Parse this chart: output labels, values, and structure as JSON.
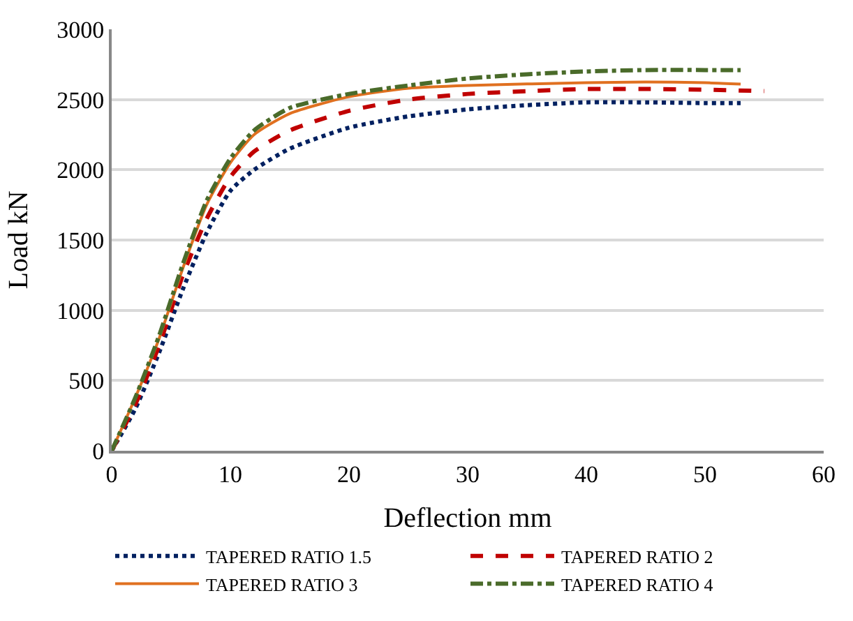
{
  "chart_data": {
    "type": "line",
    "xlabel": "Deflection mm",
    "ylabel": "Load kN",
    "xlim": [
      0,
      60
    ],
    "xticks": [
      0,
      10,
      20,
      30,
      40,
      50,
      60
    ],
    "ylim": [
      0,
      3000
    ],
    "yticks": [
      0,
      500,
      1000,
      1500,
      2000,
      2500,
      3000
    ],
    "grid": "y",
    "legend": "bottom",
    "marker": "none",
    "series": [
      {
        "name": "TAPERED RATIO 1.5",
        "color": "#002060",
        "line_style": "dotted",
        "x": [
          0,
          2,
          4,
          6,
          8,
          10,
          12,
          15,
          20,
          25,
          30,
          35,
          40,
          45,
          50,
          53
        ],
        "values": [
          0,
          300,
          700,
          1150,
          1550,
          1850,
          2000,
          2150,
          2300,
          2380,
          2430,
          2460,
          2480,
          2480,
          2475,
          2475
        ]
      },
      {
        "name": "TAPERED RATIO 2",
        "color": "#c00000",
        "line_style": "dashed",
        "x": [
          0,
          2,
          4,
          6,
          8,
          10,
          12,
          15,
          20,
          25,
          30,
          35,
          40,
          45,
          50,
          55
        ],
        "values": [
          0,
          330,
          750,
          1250,
          1650,
          1950,
          2130,
          2280,
          2420,
          2500,
          2540,
          2560,
          2575,
          2575,
          2570,
          2560
        ]
      },
      {
        "name": "TAPERED RATIO 3",
        "color": "#e07020",
        "line_style": "solid",
        "x": [
          0,
          2,
          4,
          6,
          8,
          10,
          12,
          15,
          20,
          25,
          30,
          40,
          45,
          50,
          53
        ],
        "values": [
          0,
          380,
          800,
          1300,
          1750,
          2050,
          2250,
          2400,
          2520,
          2580,
          2600,
          2620,
          2625,
          2620,
          2610
        ]
      },
      {
        "name": "TAPERED RATIO 4",
        "color": "#4a6b2a",
        "line_style": "dashdot",
        "x": [
          0,
          2,
          4,
          6,
          8,
          10,
          12,
          15,
          20,
          25,
          30,
          35,
          40,
          45,
          50,
          53
        ],
        "values": [
          0,
          380,
          820,
          1330,
          1780,
          2080,
          2280,
          2440,
          2540,
          2600,
          2650,
          2680,
          2700,
          2710,
          2710,
          2710
        ]
      }
    ]
  }
}
